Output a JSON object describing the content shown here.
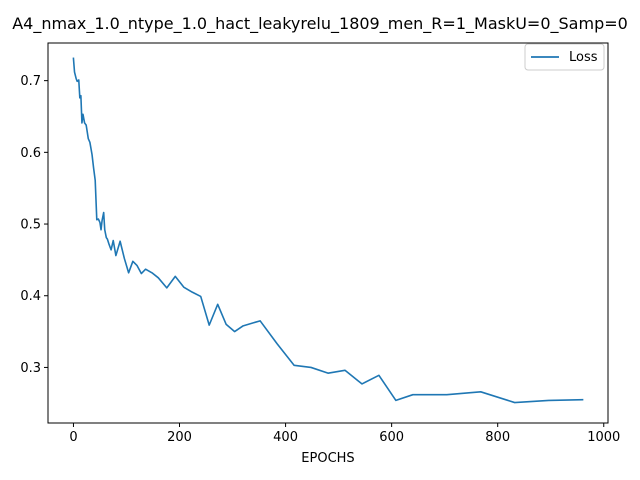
{
  "chart_data": {
    "type": "line",
    "title": "A4_nmax_1.0_ntype_1.0_hact_leakyrelu_1809_men_R=1_MaskU=0_Samp=0",
    "xlabel": "EPOCHS",
    "ylabel": "",
    "xlim": [
      -48,
      1008
    ],
    "ylim": [
      0.2225,
      0.7525
    ],
    "xticks": [
      0,
      200,
      400,
      600,
      800,
      1000
    ],
    "xtick_labels": [
      "0",
      "200",
      "400",
      "600",
      "800",
      "1000"
    ],
    "yticks": [
      0.3,
      0.4,
      0.5,
      0.6,
      0.7
    ],
    "ytick_labels": [
      "0.3",
      "0.4",
      "0.5",
      "0.6",
      "0.7"
    ],
    "grid": false,
    "legend_position": "top-right",
    "series": [
      {
        "name": "Loss",
        "color": "#1f77b4",
        "x": [
          0,
          2,
          5,
          7,
          10,
          12,
          14,
          16,
          18,
          21,
          24,
          28,
          31,
          35,
          38,
          41,
          44,
          47,
          50,
          52,
          54,
          57,
          59,
          62,
          64,
          67,
          71,
          75,
          80,
          88,
          96,
          104,
          112,
          120,
          128,
          136,
          148,
          160,
          176,
          192,
          208,
          224,
          240,
          256,
          272,
          288,
          304,
          320,
          352,
          384,
          416,
          448,
          480,
          512,
          544,
          576,
          608,
          640,
          704,
          768,
          832,
          896,
          960
        ],
        "y": [
          0.731,
          0.712,
          0.703,
          0.699,
          0.701,
          0.676,
          0.679,
          0.641,
          0.653,
          0.641,
          0.638,
          0.619,
          0.614,
          0.597,
          0.578,
          0.561,
          0.506,
          0.507,
          0.502,
          0.492,
          0.505,
          0.516,
          0.492,
          0.481,
          0.479,
          0.472,
          0.464,
          0.477,
          0.456,
          0.476,
          0.452,
          0.432,
          0.448,
          0.442,
          0.431,
          0.437,
          0.432,
          0.425,
          0.411,
          0.427,
          0.412,
          0.405,
          0.399,
          0.359,
          0.388,
          0.36,
          0.35,
          0.358,
          0.365,
          0.333,
          0.303,
          0.3,
          0.292,
          0.296,
          0.277,
          0.289,
          0.254,
          0.262,
          0.262,
          0.266,
          0.251,
          0.254,
          0.255
        ]
      }
    ]
  }
}
